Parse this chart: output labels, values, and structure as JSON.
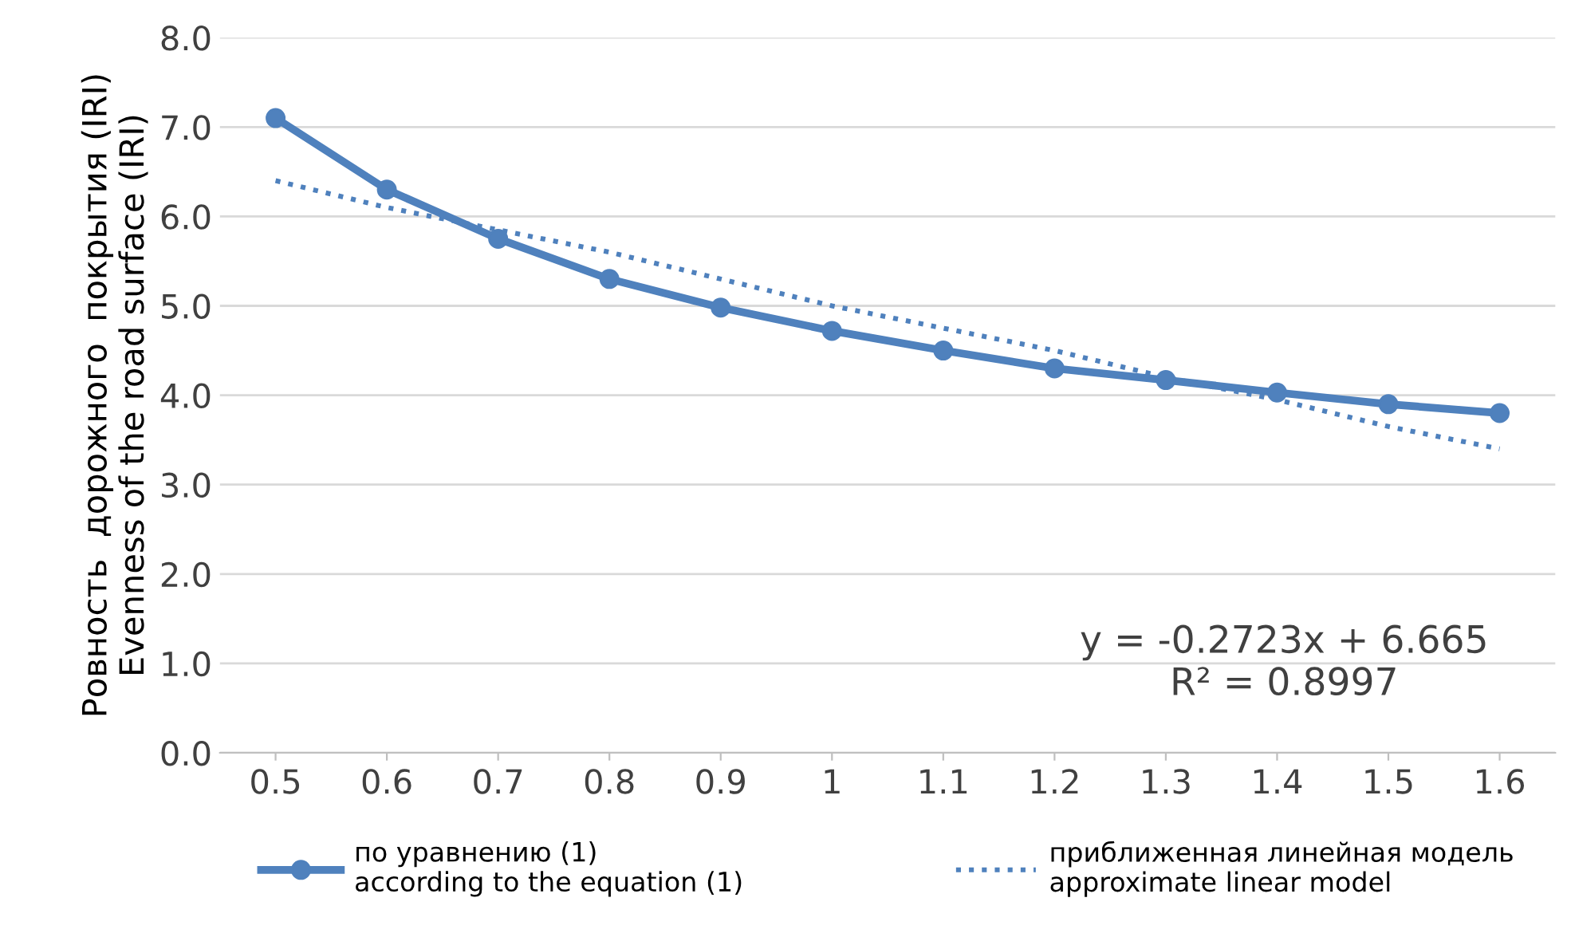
{
  "chart_data": {
    "type": "line",
    "ylabel": "Ровность  дорожного  покрытия (IRI)\nEvenness of the road surface (IRI)",
    "categories": [
      "0.5",
      "0.6",
      "0.7",
      "0.8",
      "0.9",
      "1",
      "1.1",
      "1.2",
      "1.3",
      "1.4",
      "1.5",
      "1.6"
    ],
    "series": [
      {
        "name": "по уравнению (1)\naccording to the equation (1)",
        "color": "#4f81bd",
        "marker": "circle",
        "line_style": "solid",
        "values": [
          7.1,
          6.3,
          5.75,
          5.3,
          4.98,
          4.72,
          4.5,
          4.3,
          4.17,
          4.03,
          3.9,
          3.8
        ]
      },
      {
        "name": "приближенная линейная модель\napproximate linear model",
        "color": "#4f81bd",
        "marker": "none",
        "line_style": "dotted",
        "values": [
          6.4,
          6.1,
          5.85,
          5.6,
          5.3,
          5.0,
          4.75,
          4.5,
          4.2,
          3.95,
          3.65,
          3.4
        ]
      }
    ],
    "ylim": [
      0,
      8
    ],
    "yticks": [
      {
        "value": 0,
        "label": "0.0"
      },
      {
        "value": 1,
        "label": "1.0"
      },
      {
        "value": 2,
        "label": "2.0"
      },
      {
        "value": 3,
        "label": "3.0"
      },
      {
        "value": 4,
        "label": "4.0"
      },
      {
        "value": 5,
        "label": "5.0"
      },
      {
        "value": 6,
        "label": "6.0"
      },
      {
        "value": 7,
        "label": "7.0"
      },
      {
        "value": 8,
        "label": "8.0"
      }
    ],
    "grid": "y",
    "legend": "bottom",
    "annotations": [
      "y = -0.2723x + 6.665\nR² = 0.8997"
    ]
  }
}
